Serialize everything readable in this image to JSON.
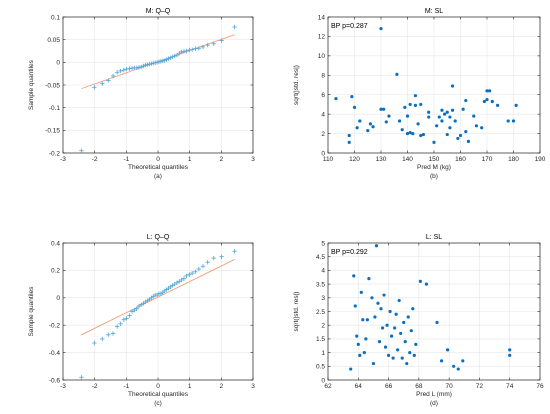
{
  "chart_data": [
    {
      "id": "a",
      "type": "scatter",
      "title": "M: Q–Q",
      "xlabel": "Theoretical quantiles",
      "ylabel": "Sample quantiles",
      "caption": "(a)",
      "xlim": [
        -3,
        3
      ],
      "ylim": [
        -0.2,
        0.1
      ],
      "xticks": [
        -3,
        -2,
        -1,
        0,
        1,
        2,
        3
      ],
      "yticks": [
        -0.2,
        -0.15,
        -0.1,
        -0.05,
        0,
        0.05,
        0.1
      ],
      "ytick_labels": [
        "-0.2",
        "-0.15",
        "-0.1",
        "-0.05",
        "0",
        "0.05",
        "0.1"
      ],
      "grid": true,
      "marker": "plus",
      "colors": {
        "points": "#4da6d9",
        "line": "#f0a07a"
      },
      "reference_line": {
        "x": [
          -2.42,
          2.42
        ],
        "y": [
          -0.058,
          0.061
        ]
      },
      "x": [
        -2.42,
        -2.01,
        -1.76,
        -1.57,
        -1.42,
        -1.29,
        -1.18,
        -1.08,
        -0.99,
        -0.9,
        -0.82,
        -0.74,
        -0.67,
        -0.6,
        -0.53,
        -0.46,
        -0.4,
        -0.33,
        -0.27,
        -0.21,
        -0.15,
        -0.09,
        -0.03,
        0.03,
        0.09,
        0.15,
        0.21,
        0.27,
        0.33,
        0.4,
        0.46,
        0.53,
        0.6,
        0.67,
        0.74,
        0.82,
        0.9,
        0.99,
        1.08,
        1.18,
        1.29,
        1.42,
        1.57,
        1.76,
        2.01,
        2.42
      ],
      "y": [
        -0.195,
        -0.055,
        -0.047,
        -0.04,
        -0.03,
        -0.022,
        -0.019,
        -0.017,
        -0.015,
        -0.014,
        -0.013,
        -0.012,
        -0.012,
        -0.011,
        -0.01,
        -0.008,
        -0.006,
        -0.005,
        -0.004,
        -0.003,
        -0.002,
        -0.001,
        0.0,
        0.001,
        0.002,
        0.003,
        0.004,
        0.006,
        0.008,
        0.01,
        0.012,
        0.014,
        0.016,
        0.02,
        0.023,
        0.024,
        0.025,
        0.027,
        0.028,
        0.03,
        0.031,
        0.034,
        0.038,
        0.041,
        0.048,
        0.078
      ]
    },
    {
      "id": "b",
      "type": "scatter",
      "title": "M: SL",
      "xlabel": "Pred M (kg)",
      "ylabel": "sqrt(|std. res|)",
      "caption": "(b)",
      "annotation": "BP p=0.287",
      "xlim": [
        110,
        190
      ],
      "ylim": [
        0,
        14
      ],
      "xticks": [
        110,
        120,
        130,
        140,
        150,
        160,
        170,
        180,
        190
      ],
      "yticks": [
        0,
        2,
        4,
        6,
        8,
        10,
        12,
        14
      ],
      "grid": true,
      "marker": "dot",
      "colors": {
        "points": "#0a6fbf"
      },
      "x": [
        113,
        118,
        118,
        119,
        120,
        121,
        122,
        125,
        126,
        127,
        130,
        130,
        131,
        132,
        133,
        136,
        137,
        138,
        139,
        140,
        140,
        141,
        141,
        142,
        143,
        143,
        144,
        145,
        145,
        146,
        148,
        148,
        150,
        151,
        152,
        153,
        153,
        154,
        155,
        155,
        156,
        156,
        157,
        157,
        158,
        159,
        160,
        161,
        162,
        162,
        163,
        165,
        166,
        168,
        169,
        170,
        170,
        171,
        172,
        174,
        178,
        180,
        181
      ],
      "y": [
        5.6,
        1.8,
        1.1,
        5.8,
        4.7,
        2.6,
        3.3,
        2.3,
        3.0,
        2.7,
        12.8,
        4.5,
        4.5,
        3.2,
        3.8,
        8.1,
        3.3,
        2.4,
        4.7,
        2.0,
        3.8,
        5.0,
        2.1,
        2.0,
        5.9,
        4.9,
        3.0,
        5.0,
        1.8,
        1.9,
        3.7,
        4.2,
        1.1,
        2.8,
        3.7,
        4.4,
        3.3,
        4.0,
        4.2,
        1.9,
        2.6,
        3.7,
        4.4,
        6.9,
        3.3,
        1.5,
        1.8,
        4.5,
        2.2,
        5.4,
        1.2,
        3.8,
        2.8,
        2.6,
        5.3,
        6.4,
        5.5,
        6.4,
        5.3,
        4.9,
        3.3,
        3.3,
        4.9
      ]
    },
    {
      "id": "c",
      "type": "scatter",
      "title": "L: Q–Q",
      "xlabel": "Theoretical quantiles",
      "ylabel": "Sample quantiles",
      "caption": "(c)",
      "xlim": [
        -3,
        3
      ],
      "ylim": [
        -0.6,
        0.4
      ],
      "xticks": [
        -3,
        -2,
        -1,
        0,
        1,
        2,
        3
      ],
      "yticks": [
        -0.6,
        -0.4,
        -0.2,
        0,
        0.2,
        0.4
      ],
      "ytick_labels": [
        "-0.6",
        "-0.4",
        "-0.2",
        "0",
        "0.2",
        "0.4"
      ],
      "grid": true,
      "marker": "plus",
      "colors": {
        "points": "#4da6d9",
        "line": "#f0a07a"
      },
      "reference_line": {
        "x": [
          -2.42,
          2.42
        ],
        "y": [
          -0.27,
          0.28
        ]
      },
      "x": [
        -2.42,
        -2.01,
        -1.76,
        -1.57,
        -1.42,
        -1.29,
        -1.18,
        -1.08,
        -0.99,
        -0.9,
        -0.82,
        -0.74,
        -0.67,
        -0.6,
        -0.53,
        -0.46,
        -0.4,
        -0.33,
        -0.27,
        -0.21,
        -0.15,
        -0.09,
        -0.03,
        0.03,
        0.09,
        0.15,
        0.21,
        0.27,
        0.33,
        0.4,
        0.46,
        0.53,
        0.6,
        0.67,
        0.74,
        0.82,
        0.9,
        0.99,
        1.08,
        1.18,
        1.29,
        1.42,
        1.57,
        1.76,
        2.01,
        2.42
      ],
      "y": [
        -0.58,
        -0.33,
        -0.3,
        -0.27,
        -0.26,
        -0.21,
        -0.19,
        -0.16,
        -0.15,
        -0.13,
        -0.1,
        -0.09,
        -0.08,
        -0.06,
        -0.05,
        -0.04,
        -0.03,
        -0.02,
        -0.01,
        0.0,
        0.01,
        0.02,
        0.02,
        0.03,
        0.03,
        0.04,
        0.05,
        0.06,
        0.07,
        0.08,
        0.09,
        0.1,
        0.11,
        0.12,
        0.13,
        0.14,
        0.16,
        0.17,
        0.18,
        0.19,
        0.21,
        0.23,
        0.26,
        0.29,
        0.3,
        0.34
      ]
    },
    {
      "id": "d",
      "type": "scatter",
      "title": "L: SL",
      "xlabel": "Pred L (mm)",
      "ylabel": "sqrt(|std. res|)",
      "caption": "(d)",
      "annotation": "BP p=0.292",
      "xlim": [
        62,
        76
      ],
      "ylim": [
        0,
        5
      ],
      "xticks": [
        62,
        64,
        66,
        68,
        70,
        72,
        74,
        76
      ],
      "yticks": [
        0,
        0.5,
        1,
        1.5,
        2,
        2.5,
        3,
        3.5,
        4,
        4.5,
        5
      ],
      "ytick_labels": [
        "0",
        "0.5",
        "1",
        "1.5",
        "2",
        "2.5",
        "3",
        "3.5",
        "4",
        "4.5",
        "5"
      ],
      "grid": true,
      "marker": "dot",
      "colors": {
        "points": "#0a6fbf"
      },
      "x": [
        63.5,
        63.7,
        63.8,
        63.9,
        64.0,
        64.1,
        64.2,
        64.3,
        64.4,
        64.5,
        64.6,
        64.7,
        64.9,
        65.0,
        65.1,
        65.2,
        65.3,
        65.4,
        65.5,
        65.6,
        65.7,
        65.8,
        65.9,
        66.0,
        66.1,
        66.2,
        66.3,
        66.4,
        66.5,
        66.6,
        66.7,
        66.8,
        66.9,
        67.0,
        67.1,
        67.2,
        67.3,
        67.4,
        67.5,
        67.6,
        67.7,
        67.8,
        68.1,
        68.5,
        69.2,
        69.5,
        69.9,
        70.3,
        70.6,
        70.9,
        74.0,
        74.0
      ],
      "y": [
        0.4,
        3.8,
        2.7,
        1.6,
        1.3,
        0.9,
        3.2,
        2.2,
        1.0,
        1.5,
        2.2,
        3.7,
        3.0,
        0.6,
        2.3,
        4.9,
        2.8,
        1.4,
        2.6,
        1.9,
        3.1,
        1.2,
        2.0,
        0.9,
        2.5,
        1.6,
        0.8,
        1.9,
        2.4,
        1.1,
        2.9,
        1.7,
        0.8,
        2.1,
        1.4,
        0.6,
        2.3,
        1.0,
        1.8,
        2.6,
        0.9,
        1.3,
        3.6,
        3.5,
        2.1,
        0.7,
        1.1,
        0.5,
        0.4,
        0.7,
        0.9,
        1.1
      ]
    }
  ]
}
